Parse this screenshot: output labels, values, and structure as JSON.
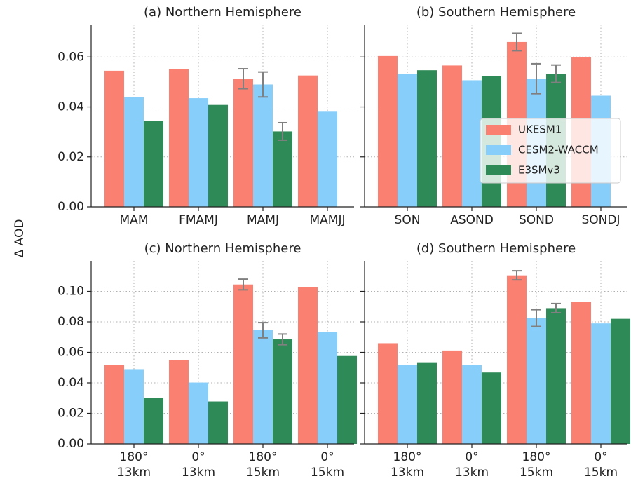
{
  "ylabel": "Δ AOD",
  "chart_data": [
    {
      "type": "bar",
      "title": "(a) Northern Hemisphere",
      "categories": [
        [
          "MAM"
        ],
        [
          "FMAMJ"
        ],
        [
          "MAMJ"
        ],
        [
          "MAMJJ"
        ]
      ],
      "series": [
        {
          "color": "#fa8072",
          "values": [
            0.0545,
            0.0552,
            0.0513,
            0.0526
          ],
          "errors": [
            null,
            null,
            0.004,
            null
          ]
        },
        {
          "color": "#87cefa",
          "values": [
            0.0438,
            0.0435,
            0.049,
            0.0381
          ],
          "errors": [
            null,
            null,
            0.005,
            null
          ]
        },
        {
          "color": "#2e8b57",
          "values": [
            0.0343,
            0.0408,
            0.0302,
            null
          ],
          "errors": [
            null,
            null,
            0.0035,
            null
          ]
        }
      ],
      "ylim": [
        0,
        0.073
      ],
      "yticks": [
        {
          "value": 0,
          "label": "0.00"
        },
        {
          "value": 0.02,
          "label": "0.02"
        },
        {
          "value": 0.04,
          "label": "0.04"
        },
        {
          "value": 0.06,
          "label": "0.06"
        }
      ],
      "grid": true
    },
    {
      "type": "bar",
      "title": "(b) Southern Hemisphere",
      "categories": [
        [
          "SON"
        ],
        [
          "ASOND"
        ],
        [
          "SOND"
        ],
        [
          "SONDJ"
        ]
      ],
      "series": [
        {
          "name": "UKESM1",
          "color": "#fa8072",
          "values": [
            0.0604,
            0.0566,
            0.066,
            0.0598
          ],
          "errors": [
            null,
            null,
            0.0035,
            null
          ]
        },
        {
          "name": "CESM2-WACCM",
          "color": "#87cefa",
          "values": [
            0.0533,
            0.0507,
            0.0513,
            0.0445
          ],
          "errors": [
            null,
            null,
            0.006,
            null
          ]
        },
        {
          "name": "E3SMv3",
          "color": "#2e8b57",
          "values": [
            0.0547,
            0.0525,
            0.0533,
            null
          ],
          "errors": [
            null,
            null,
            0.0035,
            null
          ]
        }
      ],
      "ylim": [
        0,
        0.073
      ],
      "yticks": [
        0,
        0.02,
        0.04,
        0.06
      ],
      "grid": true,
      "legend": "center right"
    },
    {
      "type": "bar",
      "title": "(c) Northern Hemisphere",
      "categories": [
        [
          "180°",
          "13km"
        ],
        [
          "0°",
          "13km"
        ],
        [
          "180°",
          "15km"
        ],
        [
          "0°",
          "15km"
        ]
      ],
      "series": [
        {
          "color": "#fa8072",
          "values": [
            0.0515,
            0.0548,
            0.1045,
            0.1028
          ],
          "errors": [
            null,
            null,
            0.0035,
            null
          ]
        },
        {
          "color": "#87cefa",
          "values": [
            0.049,
            0.0402,
            0.0745,
            0.0732
          ],
          "errors": [
            null,
            null,
            0.005,
            null
          ]
        },
        {
          "color": "#2e8b57",
          "values": [
            0.03,
            0.0278,
            0.0685,
            0.0576
          ],
          "errors": [
            null,
            null,
            0.0035,
            null
          ]
        }
      ],
      "ylim": [
        0,
        0.12
      ],
      "yticks": [
        {
          "value": 0,
          "label": "0.00"
        },
        {
          "value": 0.02,
          "label": "0.02"
        },
        {
          "value": 0.04,
          "label": "0.04"
        },
        {
          "value": 0.06,
          "label": "0.06"
        },
        {
          "value": 0.08,
          "label": "0.08"
        },
        {
          "value": 0.1,
          "label": "0.10"
        }
      ],
      "grid": true
    },
    {
      "type": "bar",
      "title": "(d) Southern Hemisphere",
      "categories": [
        [
          "180°",
          "13km"
        ],
        [
          "0°",
          "13km"
        ],
        [
          "180°",
          "15km"
        ],
        [
          "0°",
          "15km"
        ]
      ],
      "series": [
        {
          "color": "#fa8072",
          "values": [
            0.066,
            0.0612,
            0.1105,
            0.0932
          ],
          "errors": [
            null,
            null,
            0.003,
            null
          ]
        },
        {
          "color": "#87cefa",
          "values": [
            0.0515,
            0.0515,
            0.0825,
            0.079
          ],
          "errors": [
            null,
            null,
            0.0055,
            null
          ]
        },
        {
          "color": "#2e8b57",
          "values": [
            0.0535,
            0.0468,
            0.089,
            0.082
          ],
          "errors": [
            null,
            null,
            0.003,
            null
          ]
        }
      ],
      "ylim": [
        0,
        0.12
      ],
      "yticks": [
        0,
        0.02,
        0.04,
        0.06,
        0.08,
        0.1
      ],
      "grid": true
    }
  ]
}
